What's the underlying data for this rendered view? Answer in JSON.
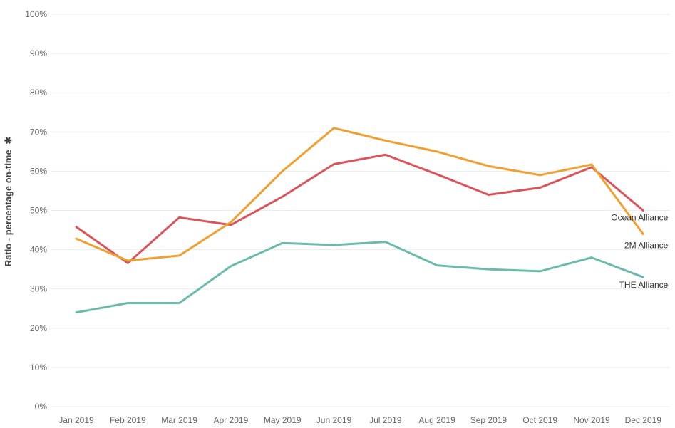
{
  "chart_data": {
    "type": "line",
    "title": "",
    "xlabel": "",
    "ylabel": "Ratio - percentage on-time",
    "ylabel_suffix": "✱",
    "ylim": [
      0,
      100
    ],
    "y_ticks": [
      0,
      10,
      20,
      30,
      40,
      50,
      60,
      70,
      80,
      90,
      100
    ],
    "y_tick_labels": [
      "0%",
      "10%",
      "20%",
      "30%",
      "40%",
      "50%",
      "60%",
      "70%",
      "80%",
      "90%",
      "100%"
    ],
    "categories": [
      "Jan 2019",
      "Feb 2019",
      "Mar 2019",
      "Apr 2019",
      "May 2019",
      "Jun 2019",
      "Jul 2019",
      "Aug 2019",
      "Sep 2019",
      "Oct 2019",
      "Nov 2019",
      "Dec 2019"
    ],
    "grid": true,
    "legend": "inline labels at line ends",
    "series": [
      {
        "name": "Ocean Alliance",
        "color": "#d9545b",
        "values": [
          45.8,
          36.6,
          48.2,
          46.3,
          53.5,
          61.8,
          64.2,
          59.2,
          54.0,
          55.8,
          61.0,
          50.0
        ]
      },
      {
        "name": "2M Alliance",
        "color": "#f0a030",
        "values": [
          42.8,
          37.2,
          38.5,
          47.0,
          60.0,
          71.0,
          67.8,
          65.0,
          61.3,
          59.0,
          61.7,
          44.0
        ]
      },
      {
        "name": "THE Alliance",
        "color": "#6bbbab",
        "values": [
          24.0,
          26.4,
          26.4,
          35.8,
          41.7,
          41.2,
          42.0,
          36.0,
          35.0,
          34.5,
          38.0,
          33.0
        ]
      }
    ]
  }
}
